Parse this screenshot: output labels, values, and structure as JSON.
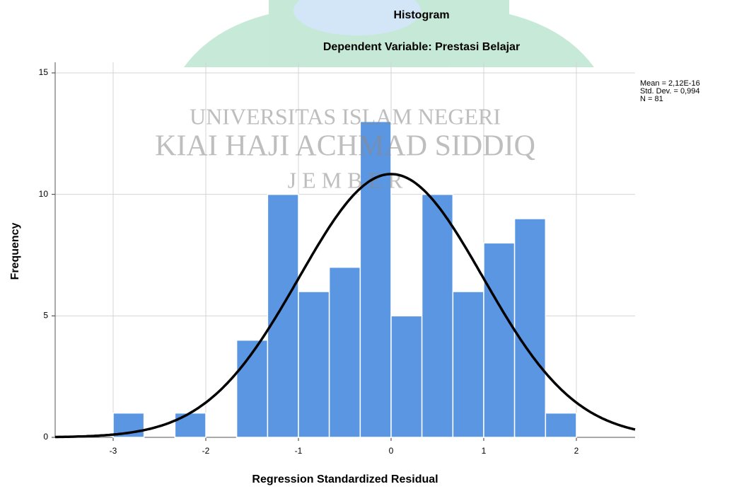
{
  "chart_data": {
    "type": "histogram",
    "title": "Histogram",
    "subtitle": "Dependent Variable: Prestasi Belajar",
    "x_label": "Regression Standardized Residual",
    "y_label": "Frequency",
    "bins": [
      -3,
      -2.667,
      -2.333,
      -2,
      -1.667,
      -1.333,
      -1,
      -0.667,
      -0.333,
      0,
      0.333,
      0.667,
      1,
      1.333,
      1.667,
      2
    ],
    "values": [
      1,
      0,
      1,
      0,
      4,
      10,
      6,
      7,
      13,
      5,
      10,
      6,
      8,
      9,
      1
    ],
    "color": "#5b96e3",
    "curve_color": "#000000",
    "xlim": [
      -3.626,
      2.634
    ],
    "ylim": [
      0,
      15
    ],
    "xticks": [
      -3,
      -2,
      -1,
      0,
      1,
      2
    ],
    "yticks": [
      0,
      5,
      10,
      15
    ],
    "grid": true,
    "stats": [
      {
        "value": 2.12e-16,
        "label": "Mean = 2,12E-16"
      },
      {
        "value": 0.994,
        "label": "Std. Dev. = 0,994"
      },
      {
        "value": 81,
        "label": "N = 81"
      }
    ],
    "watermark": [
      "UNIVERSITAS ISLAM NEGERI",
      "KIAI HAJI ACHMAD SIDDIQ",
      "J E M B E R"
    ]
  }
}
